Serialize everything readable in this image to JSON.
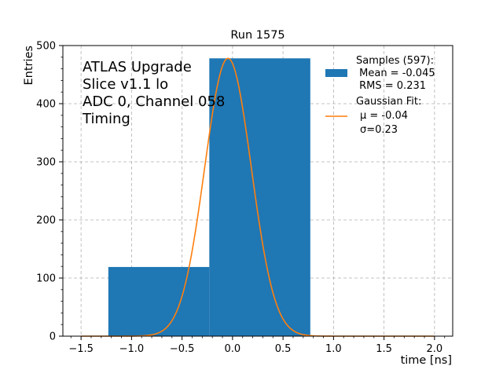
{
  "chart_data": {
    "type": "bar",
    "title": "Run 1575",
    "xlabel": "time [ns]",
    "ylabel": "Entries",
    "xlim": [
      -1.68,
      2.18
    ],
    "ylim": [
      0,
      500
    ],
    "xticks": [
      -1.5,
      -1.0,
      -0.5,
      0.0,
      0.5,
      1.0,
      1.5,
      2.0
    ],
    "xtick_labels": [
      "−1.5",
      "−1.0",
      "−0.5",
      "0.0",
      "0.5",
      "1.0",
      "1.5",
      "2.0"
    ],
    "yticks": [
      0,
      100,
      200,
      300,
      400,
      500
    ],
    "ytick_labels": [
      "0",
      "100",
      "200",
      "300",
      "400",
      "500"
    ],
    "grid": true,
    "bins": [
      {
        "x0": -1.23,
        "x1": -0.23,
        "value": 119
      },
      {
        "x0": -0.23,
        "x1": 0.77,
        "value": 478
      }
    ],
    "fit": {
      "mu": -0.045,
      "sigma": 0.231,
      "amplitude": 478,
      "x_range": [
        -1.5,
        2.0
      ]
    },
    "annotation_lines": [
      "ATLAS Upgrade",
      "Slice v1.1 lo",
      "ADC 0, Channel 058",
      "Timing"
    ],
    "legend": {
      "placement": "top-right",
      "samples": [
        "Samples (597):",
        " Mean = -0.045",
        " RMS = 0.231"
      ],
      "fit": [
        "Gaussian Fit:",
        "μ = -0.04",
        "σ=0.23"
      ]
    },
    "colors": {
      "bars": "#1f77b4",
      "fit_line": "#ff7f0e",
      "grid": "#b0b0b0"
    }
  }
}
